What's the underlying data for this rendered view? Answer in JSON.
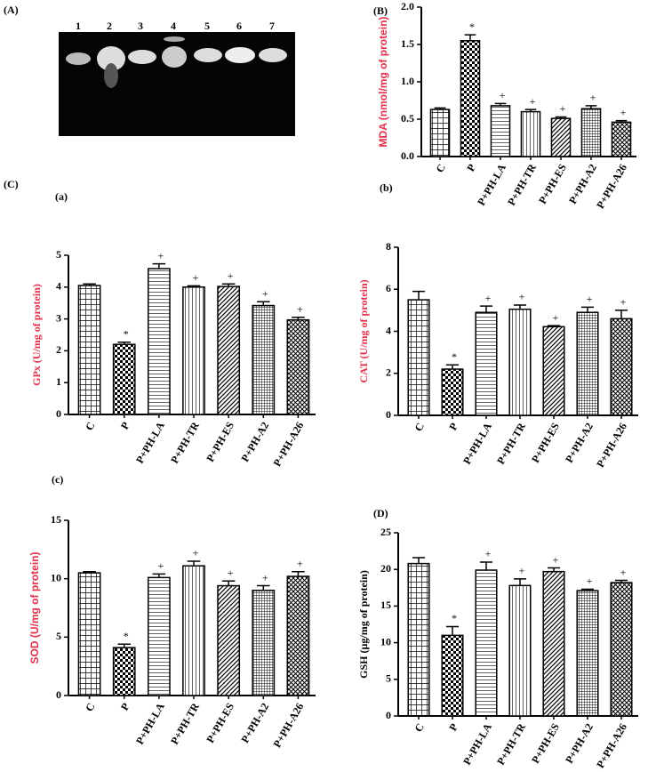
{
  "gel": {
    "panel_label": "(A)",
    "lanes": [
      "1",
      "2",
      "3",
      "4",
      "5",
      "6",
      "7"
    ]
  },
  "chart_data": [
    {
      "type": "bar",
      "panel_label": "(B)",
      "ylabel": "MDA (nmol/mg of protein)",
      "ylabel_color": "#e0304a",
      "categories": [
        "C",
        "P",
        "P+PH-LA",
        "P+PH-TR",
        "P+PH-ES",
        "P+PH-A2",
        "P+PH-A26"
      ],
      "values": [
        0.63,
        1.55,
        0.68,
        0.6,
        0.51,
        0.64,
        0.46
      ],
      "errors": [
        0.02,
        0.08,
        0.03,
        0.03,
        0.02,
        0.04,
        0.02
      ],
      "markers": [
        "",
        "*",
        "+",
        "+",
        "+",
        "+",
        "+"
      ],
      "color": "#000000",
      "patterns": [
        "grid",
        "checker",
        "hlines",
        "vlines",
        "diag",
        "finegrid",
        "cross"
      ],
      "ylim": [
        0,
        2
      ],
      "yticks": [
        {
          "value": 0,
          "label": "0.0"
        },
        {
          "value": 0.5,
          "label": "0.5"
        },
        {
          "value": 1,
          "label": "1.0"
        },
        {
          "value": 1.5,
          "label": "1.5"
        },
        {
          "value": 2,
          "label": "2.0"
        }
      ]
    },
    {
      "type": "bar",
      "section_label": "(C)",
      "panel_label": "(a)",
      "ylabel": "GPx (U/mg of protein)",
      "ylabel_color": "#e0304a",
      "categories": [
        "C",
        "P",
        "P+PH-LA",
        "P+PH-TR",
        "P+PH-ES",
        "P+PH-A2",
        "P+PH-A26"
      ],
      "values": [
        4.05,
        2.2,
        4.58,
        4.0,
        4.02,
        3.42,
        2.97
      ],
      "errors": [
        0.05,
        0.07,
        0.15,
        0.04,
        0.08,
        0.12,
        0.08
      ],
      "markers": [
        "",
        "*",
        "+",
        "+",
        "+",
        "+",
        "+"
      ],
      "color": "#000000",
      "patterns": [
        "grid",
        "checker",
        "hlines",
        "vlines",
        "diag",
        "finegrid",
        "cross"
      ],
      "ylim": [
        0,
        5
      ],
      "yticks": [
        0,
        1,
        2,
        3,
        4,
        5
      ]
    },
    {
      "type": "bar",
      "panel_label": "(b)",
      "ylabel": "CAT (U/mg of protein)",
      "ylabel_color": "#e0304a",
      "categories": [
        "C",
        "P",
        "P+PH-LA",
        "P+PH-TR",
        "P+PH-ES",
        "P+PH-A2",
        "P+PH-A26"
      ],
      "values": [
        5.5,
        2.2,
        4.9,
        5.05,
        4.22,
        4.9,
        4.6
      ],
      "errors": [
        0.4,
        0.2,
        0.3,
        0.2,
        0.05,
        0.25,
        0.4
      ],
      "markers": [
        "",
        "*",
        "+",
        "+",
        "+",
        "+",
        "+"
      ],
      "color": "#000000",
      "patterns": [
        "grid",
        "checker",
        "hlines",
        "vlines",
        "diag",
        "finegrid",
        "cross"
      ],
      "ylim": [
        0,
        8
      ],
      "yticks": [
        0,
        2,
        4,
        6,
        8
      ]
    },
    {
      "type": "bar",
      "panel_label": "(c)",
      "ylabel": "SOD (U/mg of protein)",
      "ylabel_color": "#e0304a",
      "categories": [
        "C",
        "P",
        "P+PH-LA",
        "P+PH-TR",
        "P+PH-ES",
        "P+PH-A2",
        "P+PH-A26"
      ],
      "values": [
        10.5,
        4.1,
        10.1,
        11.1,
        9.4,
        9.0,
        10.2
      ],
      "errors": [
        0.1,
        0.3,
        0.3,
        0.4,
        0.4,
        0.4,
        0.4
      ],
      "markers": [
        "",
        "*",
        "+",
        "+",
        "+",
        "+",
        "+"
      ],
      "color": "#000000",
      "patterns": [
        "grid",
        "checker",
        "hlines",
        "vlines",
        "diag",
        "finegrid",
        "cross"
      ],
      "ylim": [
        0,
        15
      ],
      "yticks": [
        0,
        5,
        10,
        15
      ]
    },
    {
      "type": "bar",
      "panel_label": "(D)",
      "ylabel": "GSH (µg/mg of protein)",
      "ylabel_color": "#000000",
      "categories": [
        "C",
        "P",
        "P+PH-LA",
        "P+PH-TR",
        "P+PH-ES",
        "P+PH-A2",
        "P+PH-A26"
      ],
      "values": [
        20.8,
        11.0,
        19.9,
        17.8,
        19.7,
        17.1,
        18.2
      ],
      "errors": [
        0.8,
        1.2,
        1.1,
        0.9,
        0.5,
        0.2,
        0.3
      ],
      "markers": [
        "",
        "*",
        "+",
        "+",
        "+",
        "+",
        "+"
      ],
      "color": "#000000",
      "patterns": [
        "grid",
        "checker",
        "hlines",
        "vlines",
        "diag",
        "finegrid",
        "cross"
      ],
      "ylim": [
        0,
        25
      ],
      "yticks": [
        0,
        5,
        10,
        15,
        20,
        25
      ]
    }
  ]
}
